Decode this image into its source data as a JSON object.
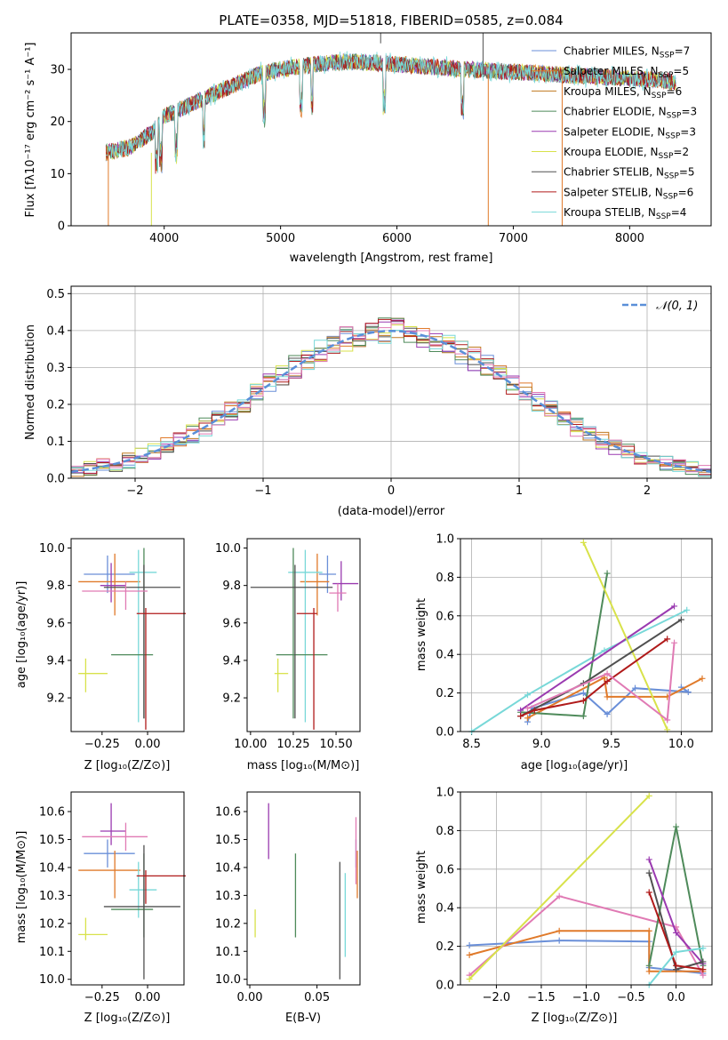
{
  "figure_title": "PLATE=0358, MJD=51818, FIBERID=0585, z=0.084",
  "colors": {
    "chabrier_miles": "#6a8fd8",
    "salpeter_miles": "#e07a2a",
    "kroupa_miles": "#c07a20",
    "chabrier_elodie": "#4e8a5a",
    "salpeter_elodie": "#9a3ab0",
    "kroupa_elodie": "#d8e24a",
    "chabrier_stelib": "#505050",
    "salpeter_stelib": "#b01a1a",
    "kroupa_stelib": "#78d8d8",
    "pink": "#e07ab4",
    "normal_curve": "#5a8fd8"
  },
  "panels": [
    {
      "id": "spectrum",
      "xlabel": "wavelength [Angstrom, rest frame]",
      "ylabel": "Flux [fλ10⁻¹⁷ erg cm⁻² s⁻¹ A⁻¹]",
      "x_ticks": [
        "4000",
        "5000",
        "6000",
        "7000",
        "8000"
      ],
      "y_ticks": [
        "0",
        "10",
        "20",
        "30"
      ],
      "legend": [
        {
          "label": "Chabrier MILES, N",
          "sub": "SSP",
          "val": "=7"
        },
        {
          "label": "Salpeter MILES, N",
          "sub": "SSP",
          "val": "=5"
        },
        {
          "label": "Kroupa MILES, N",
          "sub": "SSP",
          "val": "=6"
        },
        {
          "label": "Chabrier ELODIE, N",
          "sub": "SSP",
          "val": "=3"
        },
        {
          "label": "Salpeter ELODIE, N",
          "sub": "SSP",
          "val": "=3"
        },
        {
          "label": "Kroupa ELODIE, N",
          "sub": "SSP",
          "val": "=2"
        },
        {
          "label": "Chabrier STELIB, N",
          "sub": "SSP",
          "val": "=5"
        },
        {
          "label": "Salpeter STELIB, N",
          "sub": "SSP",
          "val": "=6"
        },
        {
          "label": "Kroupa STELIB, N",
          "sub": "SSP",
          "val": "=4"
        }
      ]
    },
    {
      "id": "residuals",
      "xlabel": "(data-model)/error",
      "ylabel": "Normed distribution",
      "x_ticks": [
        "−2",
        "−1",
        "0",
        "1",
        "2"
      ],
      "y_ticks": [
        "0.0",
        "0.1",
        "0.2",
        "0.3",
        "0.4",
        "0.5"
      ],
      "legend_label": "𝒩(0, 1)"
    },
    {
      "id": "age_vs_Z",
      "xlabel": "Z [log₁₀(Z/Z⊙)]",
      "ylabel": "age  [log₁₀(age/yr)]",
      "x_ticks": [
        "−0.25",
        "0.00"
      ],
      "y_ticks": [
        "9.2",
        "9.4",
        "9.6",
        "9.8",
        "10.0"
      ]
    },
    {
      "id": "age_vs_mass",
      "xlabel": "mass [log₁₀(M/M⊙)]",
      "x_ticks": [
        "10.00",
        "10.25",
        "10.50"
      ],
      "y_ticks": [
        "9.2",
        "9.4",
        "9.6",
        "9.8",
        "10.0"
      ]
    },
    {
      "id": "weight_vs_age",
      "xlabel": "age  [log₁₀(age/yr)]",
      "ylabel": "mass weight",
      "x_ticks": [
        "8.5",
        "9.0",
        "9.5",
        "10.0"
      ],
      "y_ticks": [
        "0.0",
        "0.2",
        "0.4",
        "0.6",
        "0.8",
        "1.0"
      ]
    },
    {
      "id": "mass_vs_Z",
      "xlabel": "Z [log₁₀(Z/Z⊙)]",
      "ylabel": "mass [log₁₀(M/M⊙)]",
      "x_ticks": [
        "−0.25",
        "0.00"
      ],
      "y_ticks": [
        "10.0",
        "10.1",
        "10.2",
        "10.3",
        "10.4",
        "10.5",
        "10.6"
      ]
    },
    {
      "id": "mass_vs_ebv",
      "xlabel": "E(B-V)",
      "x_ticks": [
        "0.00",
        "0.05"
      ],
      "y_ticks": [
        "10.0",
        "10.1",
        "10.2",
        "10.3",
        "10.4",
        "10.5",
        "10.6"
      ]
    },
    {
      "id": "weight_vs_Z",
      "xlabel": "Z [log₁₀(Z/Z⊙)]",
      "ylabel": "mass weight",
      "x_ticks": [
        "−2.0",
        "−1.5",
        "−1.0",
        "−0.5",
        "0.0"
      ],
      "y_ticks": [
        "0.0",
        "0.2",
        "0.4",
        "0.6",
        "0.8",
        "1.0"
      ]
    }
  ],
  "chart_data": [
    {
      "type": "line",
      "title": "PLATE=0358, MJD=51818, FIBERID=0585, z=0.084",
      "xlabel": "wavelength [Angstrom, rest frame]",
      "ylabel": "Flux",
      "xlim": [
        3200,
        8700
      ],
      "ylim": [
        0,
        37
      ],
      "grid": false,
      "legend_position": "top-right",
      "continuum": [
        [
          3500,
          14
        ],
        [
          3700,
          15
        ],
        [
          3900,
          18
        ],
        [
          4000,
          21
        ],
        [
          4200,
          23
        ],
        [
          4400,
          25
        ],
        [
          4600,
          27
        ],
        [
          4800,
          29
        ],
        [
          5000,
          30
        ],
        [
          5300,
          31
        ],
        [
          5600,
          31.5
        ],
        [
          6000,
          31
        ],
        [
          6300,
          30.5
        ],
        [
          6600,
          30
        ],
        [
          7000,
          29.5
        ],
        [
          7400,
          29
        ],
        [
          7800,
          28.5
        ],
        [
          8200,
          28
        ],
        [
          8400,
          27.5
        ]
      ],
      "series_names": [
        "Chabrier MILES",
        "Salpeter MILES",
        "Kroupa MILES",
        "Chabrier ELODIE",
        "Salpeter ELODIE",
        "Kroupa ELODIE",
        "Chabrier STELIB",
        "Salpeter STELIB",
        "Kroupa STELIB"
      ]
    },
    {
      "type": "bar",
      "title": "",
      "xlabel": "(data-model)/error",
      "ylabel": "Normed distribution",
      "xlim": [
        -2.5,
        2.5
      ],
      "ylim": [
        0,
        0.52
      ],
      "grid": true,
      "legend_position": "top-right",
      "bin_width": 0.1,
      "reference_curve": "normal(0,1)"
    },
    {
      "type": "scatter",
      "xlabel": "Z",
      "ylabel": "age",
      "xlim": [
        -0.42,
        0.2
      ],
      "ylim": [
        9.02,
        10.05
      ],
      "points": [
        {
          "x": -0.22,
          "y": 9.86,
          "xerr": [
            0.13,
            0.15
          ],
          "yerr": [
            0.1,
            0.1
          ],
          "color": "#6a8fd8"
        },
        {
          "x": -0.18,
          "y": 9.82,
          "xerr": [
            0.2,
            0.14
          ],
          "yerr": [
            0.18,
            0.15
          ],
          "color": "#e07a2a"
        },
        {
          "x": -0.05,
          "y": 9.87,
          "xerr": [
            0.05,
            0.1
          ],
          "yerr": [
            0.8,
            0.12
          ],
          "color": "#78d8d8"
        },
        {
          "x": -0.02,
          "y": 9.43,
          "xerr": [
            0.18,
            0.05
          ],
          "yerr": [
            0.34,
            0.57
          ],
          "color": "#4e8a5a"
        },
        {
          "x": -0.2,
          "y": 9.8,
          "xerr": [
            0.06,
            0.08
          ],
          "yerr": [
            0.09,
            0.12
          ],
          "color": "#9a3ab0"
        },
        {
          "x": -0.34,
          "y": 9.33,
          "xerr": [
            0.04,
            0.12
          ],
          "yerr": [
            0.1,
            0.08
          ],
          "color": "#d8e24a"
        },
        {
          "x": -0.02,
          "y": 9.79,
          "xerr": [
            0.22,
            0.2
          ],
          "yerr": [
            0.7,
            0.12
          ],
          "color": "#505050"
        },
        {
          "x": -0.01,
          "y": 9.65,
          "xerr": [
            0.05,
            0.22
          ],
          "yerr": [
            0.62,
            0.03
          ],
          "color": "#b01a1a"
        },
        {
          "x": -0.12,
          "y": 9.77,
          "xerr": [
            0.24,
            0.12
          ],
          "yerr": [
            0.1,
            0.05
          ],
          "color": "#e07ab4"
        }
      ]
    },
    {
      "type": "scatter",
      "xlabel": "mass",
      "ylabel": "age",
      "xlim": [
        9.98,
        10.64
      ],
      "ylim": [
        9.02,
        10.05
      ],
      "points": [
        {
          "x": 10.45,
          "y": 9.86,
          "xerr": [
            0.05,
            0.05
          ],
          "yerr": [
            0.1,
            0.1
          ],
          "color": "#6a8fd8"
        },
        {
          "x": 10.39,
          "y": 9.82,
          "xerr": [
            0.1,
            0.07
          ],
          "yerr": [
            0.18,
            0.15
          ],
          "color": "#e07a2a"
        },
        {
          "x": 10.32,
          "y": 9.87,
          "xerr": [
            0.1,
            0.1
          ],
          "yerr": [
            0.8,
            0.12
          ],
          "color": "#78d8d8"
        },
        {
          "x": 10.25,
          "y": 9.43,
          "xerr": [
            0.1,
            0.2
          ],
          "yerr": [
            0.34,
            0.57
          ],
          "color": "#4e8a5a"
        },
        {
          "x": 10.53,
          "y": 9.81,
          "xerr": [
            0.05,
            0.1
          ],
          "yerr": [
            0.09,
            0.12
          ],
          "color": "#9a3ab0"
        },
        {
          "x": 10.16,
          "y": 9.33,
          "xerr": [
            0.02,
            0.06
          ],
          "yerr": [
            0.1,
            0.08
          ],
          "color": "#d8e24a"
        },
        {
          "x": 10.26,
          "y": 9.79,
          "xerr": [
            0.26,
            0.22
          ],
          "yerr": [
            0.7,
            0.12
          ],
          "color": "#505050"
        },
        {
          "x": 10.37,
          "y": 9.65,
          "xerr": [
            0.1,
            0.02
          ],
          "yerr": [
            0.62,
            0.03
          ],
          "color": "#b01a1a"
        },
        {
          "x": 10.51,
          "y": 9.76,
          "xerr": [
            0.05,
            0.05
          ],
          "yerr": [
            0.1,
            0.05
          ],
          "color": "#e07ab4"
        }
      ]
    },
    {
      "type": "line",
      "xlabel": "age",
      "ylabel": "mass weight",
      "xlim": [
        8.42,
        10.22
      ],
      "ylim": [
        0,
        1
      ],
      "grid": true,
      "series": [
        {
          "name": "Chabrier MILES",
          "color": "#6a8fd8",
          "x": [
            8.9,
            8.93,
            9.3,
            9.47,
            9.67,
            10.05,
            10.0
          ],
          "y": [
            0.05,
            0.12,
            0.2,
            0.09,
            0.225,
            0.205,
            0.23
          ]
        },
        {
          "name": "Salpeter MILES",
          "color": "#e07a2a",
          "x": [
            8.9,
            9.45,
            9.47,
            9.9,
            10.15
          ],
          "y": [
            0.07,
            0.28,
            0.18,
            0.18,
            0.275
          ]
        },
        {
          "name": "Kroupa STELIB",
          "color": "#78d8d8",
          "x": [
            8.5,
            8.9,
            9.45,
            10.04
          ],
          "y": [
            0.0,
            0.19,
            0.42,
            0.63
          ]
        },
        {
          "name": "Chabrier ELODIE",
          "color": "#4e8a5a",
          "x": [
            8.85,
            9.3,
            9.47
          ],
          "y": [
            0.1,
            0.08,
            0.82
          ]
        },
        {
          "name": "Salpeter ELODIE",
          "color": "#9a3ab0",
          "x": [
            8.85,
            9.95
          ],
          "y": [
            0.11,
            0.65
          ]
        },
        {
          "name": "Kroupa ELODIE",
          "color": "#d8e24a",
          "x": [
            9.3,
            9.9
          ],
          "y": [
            0.98,
            0.01
          ]
        },
        {
          "name": "Chabrier STELIB",
          "color": "#505050",
          "x": [
            8.85,
            9.3,
            10.0
          ],
          "y": [
            0.08,
            0.25,
            0.58
          ]
        },
        {
          "name": "Salpeter STELIB",
          "color": "#b01a1a",
          "x": [
            8.85,
            8.95,
            9.3,
            9.47,
            9.9
          ],
          "y": [
            0.08,
            0.11,
            0.16,
            0.26,
            0.48
          ]
        },
        {
          "name": "pink",
          "color": "#e07ab4",
          "x": [
            8.9,
            9.47,
            9.9,
            9.95
          ],
          "y": [
            0.12,
            0.3,
            0.06,
            0.46
          ]
        }
      ]
    },
    {
      "type": "scatter",
      "xlabel": "Z",
      "ylabel": "mass",
      "xlim": [
        -0.42,
        0.2
      ],
      "ylim": [
        9.98,
        10.67
      ],
      "points": [
        {
          "x": -0.22,
          "y": 10.45,
          "xerr": [
            0.13,
            0.15
          ],
          "yerr": [
            0.05,
            0.05
          ],
          "color": "#6a8fd8"
        },
        {
          "x": -0.18,
          "y": 10.39,
          "xerr": [
            0.2,
            0.14
          ],
          "yerr": [
            0.1,
            0.07
          ],
          "color": "#e07a2a"
        },
        {
          "x": -0.05,
          "y": 10.32,
          "xerr": [
            0.05,
            0.1
          ],
          "yerr": [
            0.1,
            0.1
          ],
          "color": "#78d8d8"
        },
        {
          "x": -0.02,
          "y": 10.25,
          "xerr": [
            0.18,
            0.05
          ],
          "yerr": [
            0.1,
            0.2
          ],
          "color": "#4e8a5a"
        },
        {
          "x": -0.2,
          "y": 10.53,
          "xerr": [
            0.06,
            0.08
          ],
          "yerr": [
            0.05,
            0.1
          ],
          "color": "#9a3ab0"
        },
        {
          "x": -0.34,
          "y": 10.16,
          "xerr": [
            0.04,
            0.12
          ],
          "yerr": [
            0.02,
            0.06
          ],
          "color": "#d8e24a"
        },
        {
          "x": -0.02,
          "y": 10.26,
          "xerr": [
            0.22,
            0.2
          ],
          "yerr": [
            0.26,
            0.22
          ],
          "color": "#505050"
        },
        {
          "x": -0.01,
          "y": 10.37,
          "xerr": [
            0.05,
            0.22
          ],
          "yerr": [
            0.1,
            0.02
          ],
          "color": "#b01a1a"
        },
        {
          "x": -0.12,
          "y": 10.51,
          "xerr": [
            0.24,
            0.12
          ],
          "yerr": [
            0.05,
            0.05
          ],
          "color": "#e07ab4"
        }
      ]
    },
    {
      "type": "scatter",
      "xlabel": "E(B-V)",
      "ylabel": "mass",
      "xlim": [
        -0.002,
        0.082
      ],
      "ylim": [
        9.98,
        10.67
      ],
      "points": [
        {
          "x": 0.079,
          "y": 10.45,
          "yerr": [
            0.05,
            0.05
          ],
          "color": "#6a8fd8"
        },
        {
          "x": 0.08,
          "y": 10.39,
          "yerr": [
            0.1,
            0.07
          ],
          "color": "#e07a2a"
        },
        {
          "x": 0.071,
          "y": 10.28,
          "yerr": [
            0.2,
            0.1
          ],
          "color": "#78d8d8"
        },
        {
          "x": 0.034,
          "y": 10.25,
          "yerr": [
            0.1,
            0.2
          ],
          "color": "#4e8a5a"
        },
        {
          "x": 0.014,
          "y": 10.53,
          "yerr": [
            0.1,
            0.1
          ],
          "color": "#9a3ab0"
        },
        {
          "x": 0.004,
          "y": 10.2,
          "yerr": [
            0.05,
            0.05
          ],
          "color": "#d8e24a"
        },
        {
          "x": 0.067,
          "y": 10.26,
          "yerr": [
            0.26,
            0.16
          ],
          "color": "#505050"
        },
        {
          "x": 0.079,
          "y": 10.44,
          "yerr": [
            0.1,
            0.14
          ],
          "color": "#e07ab4"
        }
      ]
    },
    {
      "type": "line",
      "xlabel": "Z",
      "ylabel": "mass weight",
      "xlim": [
        -2.4,
        0.4
      ],
      "ylim": [
        0,
        1
      ],
      "grid": true,
      "series": [
        {
          "name": "Chabrier MILES",
          "color": "#6a8fd8",
          "x": [
            -2.3,
            -1.3,
            -0.3,
            -0.3,
            0.3
          ],
          "y": [
            0.205,
            0.23,
            0.225,
            0.09,
            0.06
          ]
        },
        {
          "name": "Salpeter MILES",
          "color": "#e07a2a",
          "x": [
            -2.3,
            -1.3,
            -0.3,
            -0.3,
            0.3
          ],
          "y": [
            0.155,
            0.28,
            0.28,
            0.07,
            0.07
          ]
        },
        {
          "name": "pink",
          "color": "#e07ab4",
          "x": [
            -2.3,
            -1.3,
            0.0,
            0.3
          ],
          "y": [
            0.05,
            0.46,
            0.3,
            0.05
          ]
        },
        {
          "name": "Kroupa ELODIE",
          "color": "#d8e24a",
          "x": [
            -2.3,
            -0.3
          ],
          "y": [
            0.03,
            0.98
          ]
        },
        {
          "name": "Chabrier ELODIE",
          "color": "#4e8a5a",
          "x": [
            -0.3,
            0.0,
            0.3
          ],
          "y": [
            0.1,
            0.82,
            0.1
          ]
        },
        {
          "name": "Salpeter ELODIE",
          "color": "#9a3ab0",
          "x": [
            -0.3,
            0.0,
            0.3
          ],
          "y": [
            0.65,
            0.27,
            0.11
          ]
        },
        {
          "name": "Chabrier STELIB",
          "color": "#505050",
          "x": [
            -0.3,
            0.0,
            0.3
          ],
          "y": [
            0.58,
            0.08,
            0.12
          ]
        },
        {
          "name": "Salpeter STELIB",
          "color": "#b01a1a",
          "x": [
            -0.3,
            0.0,
            0.3
          ],
          "y": [
            0.48,
            0.1,
            0.08
          ]
        },
        {
          "name": "Kroupa STELIB",
          "color": "#78d8d8",
          "x": [
            -0.3,
            0.0,
            0.3
          ],
          "y": [
            0.0,
            0.17,
            0.19
          ]
        }
      ]
    }
  ]
}
